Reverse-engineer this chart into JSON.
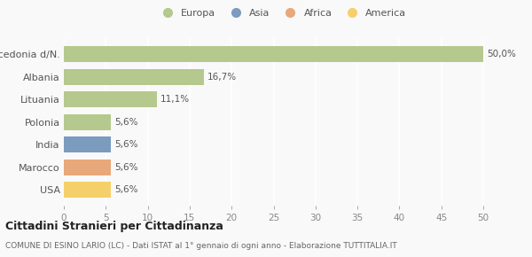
{
  "categories": [
    "Macedonia d/N.",
    "Albania",
    "Lituania",
    "Polonia",
    "India",
    "Marocco",
    "USA"
  ],
  "values": [
    50.0,
    16.7,
    11.1,
    5.6,
    5.6,
    5.6,
    5.6
  ],
  "labels": [
    "50,0%",
    "16,7%",
    "11,1%",
    "5,6%",
    "5,6%",
    "5,6%",
    "5,6%"
  ],
  "colors": [
    "#b5c98e",
    "#b5c98e",
    "#b5c98e",
    "#b5c98e",
    "#7b9bbf",
    "#e8a87a",
    "#f5d06a"
  ],
  "legend": [
    {
      "label": "Europa",
      "color": "#b5c98e"
    },
    {
      "label": "Asia",
      "color": "#7b9bbf"
    },
    {
      "label": "Africa",
      "color": "#e8a87a"
    },
    {
      "label": "America",
      "color": "#f5d06a"
    }
  ],
  "xlim": [
    0,
    52
  ],
  "xticks": [
    0,
    5,
    10,
    15,
    20,
    25,
    30,
    35,
    40,
    45,
    50
  ],
  "title": "Cittadini Stranieri per Cittadinanza",
  "subtitle": "COMUNE DI ESINO LARIO (LC) - Dati ISTAT al 1° gennaio di ogni anno - Elaborazione TUTTITALIA.IT",
  "background_color": "#f9f9f9",
  "grid_color": "#ffffff"
}
